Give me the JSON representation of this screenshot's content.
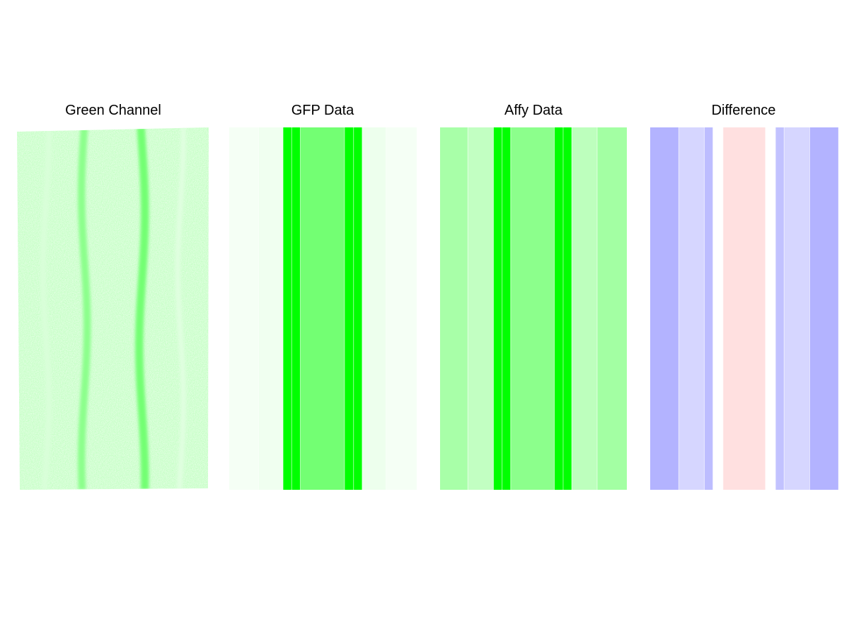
{
  "chart_data": [
    {
      "type": "image",
      "title": "Green Channel",
      "color": "#00ff00",
      "description_values": {
        "stripes": [
          {
            "center": 0.35,
            "intensity": 0.45
          },
          {
            "center": 0.65,
            "intensity": 0.55
          },
          {
            "center": 0.15,
            "intensity": 0.15
          },
          {
            "center": 0.85,
            "intensity": 0.12
          }
        ]
      }
    },
    {
      "type": "heatmap",
      "title": "GFP Data",
      "color": "#00ff00",
      "columns": [
        {
          "width": 0.156,
          "intensity": 0.04
        },
        {
          "width": 0.131,
          "intensity": 0.06
        },
        {
          "width": 0.046,
          "intensity": 1.0
        },
        {
          "width": 0.046,
          "intensity": 1.0
        },
        {
          "width": 0.236,
          "intensity": 0.55
        },
        {
          "width": 0.048,
          "intensity": 1.0
        },
        {
          "width": 0.046,
          "intensity": 1.0
        },
        {
          "width": 0.128,
          "intensity": 0.07
        },
        {
          "width": 0.163,
          "intensity": 0.04
        }
      ]
    },
    {
      "type": "heatmap",
      "title": "Affy Data",
      "color": "#00ff00",
      "columns": [
        {
          "width": 0.149,
          "intensity": 0.34
        },
        {
          "width": 0.137,
          "intensity": 0.24
        },
        {
          "width": 0.046,
          "intensity": 1.0
        },
        {
          "width": 0.046,
          "intensity": 1.0
        },
        {
          "width": 0.234,
          "intensity": 0.45
        },
        {
          "width": 0.047,
          "intensity": 1.0
        },
        {
          "width": 0.046,
          "intensity": 1.0
        },
        {
          "width": 0.136,
          "intensity": 0.26
        },
        {
          "width": 0.159,
          "intensity": 0.36
        }
      ]
    },
    {
      "type": "heatmap",
      "title": "Difference",
      "positive_color": "#ff0000",
      "negative_color": "#0000ff",
      "columns": [
        {
          "width": 0.153,
          "value": -0.3
        },
        {
          "width": 0.137,
          "value": -0.16
        },
        {
          "width": 0.046,
          "value": -0.26
        },
        {
          "width": 0.054,
          "value": 0.0
        },
        {
          "width": 0.227,
          "value": 0.12
        },
        {
          "width": 0.054,
          "value": 0.0
        },
        {
          "width": 0.046,
          "value": -0.24
        },
        {
          "width": 0.137,
          "value": -0.16
        },
        {
          "width": 0.153,
          "value": -0.3
        }
      ]
    }
  ]
}
